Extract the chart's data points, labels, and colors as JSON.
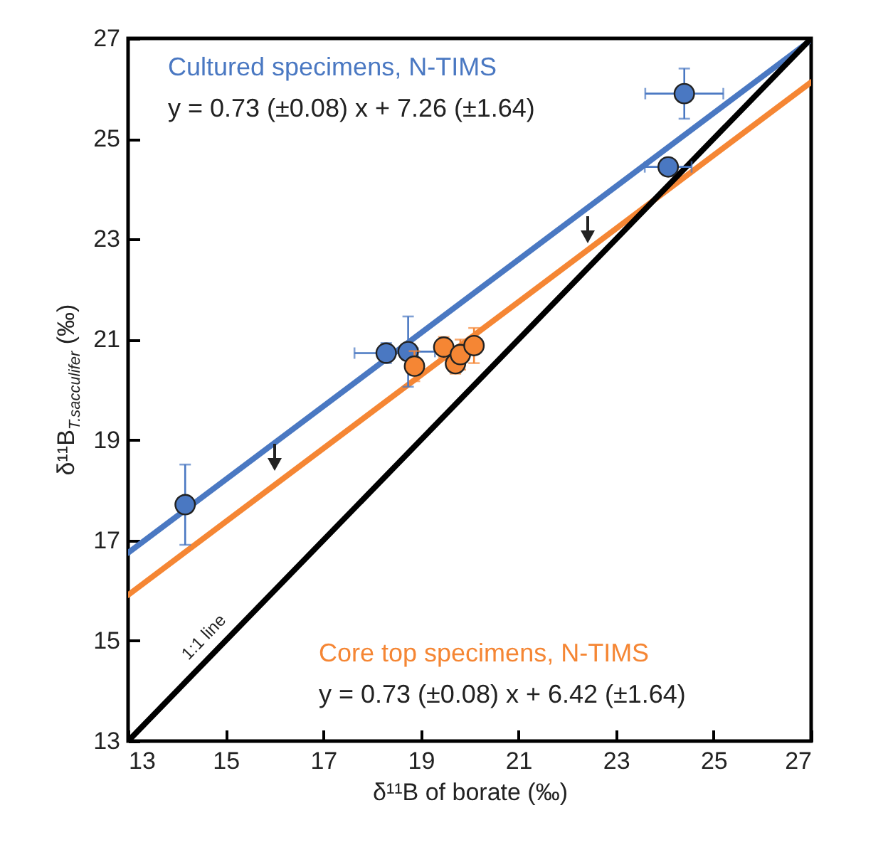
{
  "chart_data": {
    "type": "scatter",
    "xlabel": "δ¹¹B of borate (‰)",
    "ylabel": "δ¹¹B$_{T.sacculifer}$ (‰)",
    "xlim": [
      13,
      27
    ],
    "ylim": [
      13,
      27
    ],
    "xticks": [
      13,
      15,
      17,
      19,
      21,
      23,
      25,
      27
    ],
    "yticks": [
      13,
      15,
      17,
      19,
      21,
      23,
      25,
      27
    ],
    "series": [
      {
        "name": "Cultured specimens, N-TIMS",
        "marker": "circle",
        "color": "#4a78c2",
        "x": [
          14.17,
          18.29,
          18.74,
          24.07,
          24.4
        ],
        "values": [
          17.71,
          20.73,
          20.76,
          24.44,
          25.9
        ],
        "errors": [
          0.8,
          0.2,
          0.7,
          0.15,
          0.5
        ],
        "xerrors": [
          0.1,
          0.65,
          0.55,
          0.48,
          0.8
        ]
      },
      {
        "name": "Core top specimens, N-TIMS",
        "marker": "circle",
        "color": "#f58634",
        "x": [
          18.87,
          19.47,
          19.71,
          19.81,
          20.09
        ],
        "values": [
          20.47,
          20.85,
          20.52,
          20.7,
          20.88
        ],
        "errors": [
          0.3,
          0.2,
          0.2,
          0.3,
          0.35
        ],
        "xerrors": [
          null,
          0.1,
          null,
          0.15,
          0.1
        ]
      },
      {
        "type": "line",
        "color": "#4a78c2",
        "x": [
          13,
          27
        ],
        "values": [
          16.75,
          26.97
        ]
      },
      {
        "type": "line",
        "color": "#f58634",
        "x": [
          13,
          27
        ],
        "values": [
          15.91,
          26.13
        ]
      },
      {
        "name": "1:1 line",
        "type": "line",
        "color": "#000000",
        "x": [
          13,
          27
        ],
        "values": [
          13,
          27
        ]
      }
    ],
    "annotations": [
      "y = 0.73 (±0.08) x + 7.26 (±1.64)",
      "y = 0.73 (±0.08) x + 6.42 (±1.64)"
    ]
  }
}
